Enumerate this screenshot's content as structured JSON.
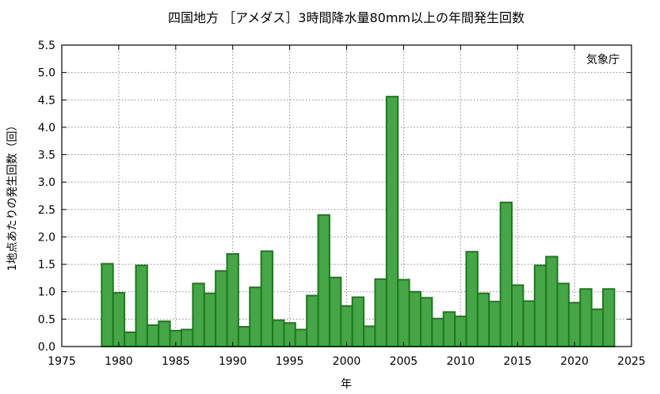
{
  "chart_data": {
    "type": "bar",
    "title": "四国地方 ［アメダス］3時間降水量80mm以上の年間発生回数",
    "xlabel": "年",
    "ylabel": "1地点あたりの発生回数（回）",
    "annotation": "気象庁",
    "xlim": [
      1975,
      2025
    ],
    "ylim": [
      0,
      5.5
    ],
    "xticks": [
      1975,
      1980,
      1985,
      1990,
      1995,
      2000,
      2005,
      2010,
      2015,
      2020,
      2025
    ],
    "yticks": [
      "0.0",
      "0.5",
      "1.0",
      "1.5",
      "2.0",
      "2.5",
      "3.0",
      "3.5",
      "4.0",
      "4.5",
      "5.0",
      "5.5"
    ],
    "grid": true,
    "x": [
      1979,
      1980,
      1981,
      1982,
      1983,
      1984,
      1985,
      1986,
      1987,
      1988,
      1989,
      1990,
      1991,
      1992,
      1993,
      1994,
      1995,
      1996,
      1997,
      1998,
      1999,
      2000,
      2001,
      2002,
      2003,
      2004,
      2005,
      2006,
      2007,
      2008,
      2009,
      2010,
      2011,
      2012,
      2013,
      2014,
      2015,
      2016,
      2017,
      2018,
      2019,
      2020,
      2021,
      2022,
      2023
    ],
    "values": [
      1.51,
      0.98,
      0.26,
      1.48,
      0.39,
      0.46,
      0.29,
      0.31,
      1.15,
      0.97,
      1.38,
      1.69,
      0.36,
      1.08,
      1.74,
      0.48,
      0.43,
      0.31,
      0.93,
      2.4,
      1.26,
      0.74,
      0.9,
      0.37,
      1.23,
      4.56,
      1.22,
      1.0,
      0.89,
      0.51,
      0.63,
      0.55,
      1.73,
      0.97,
      0.82,
      2.63,
      1.12,
      0.83,
      1.48,
      1.64,
      1.15,
      0.8,
      1.05,
      0.68,
      1.05
    ]
  }
}
